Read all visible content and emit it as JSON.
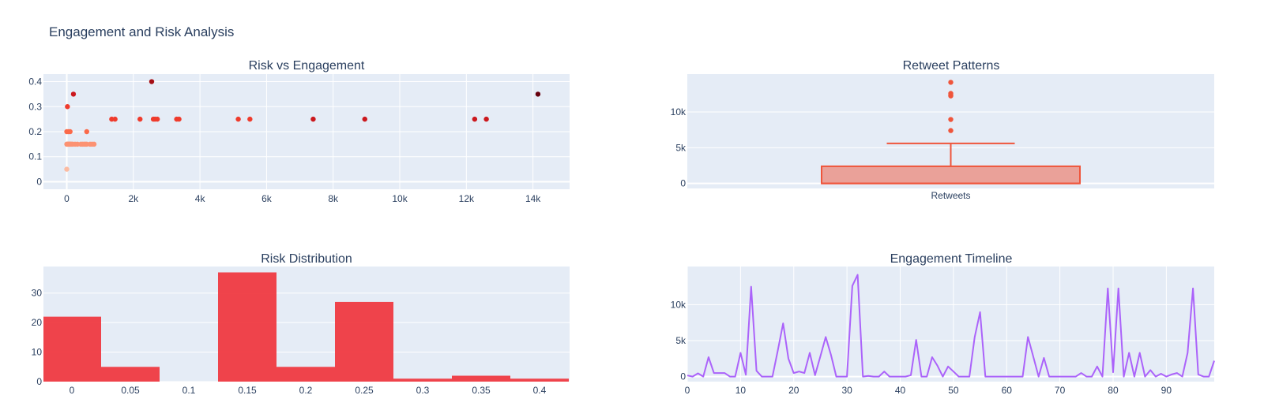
{
  "title": "Engagement and Risk Analysis",
  "chart_data": [
    {
      "type": "scatter",
      "title": "Risk vs Engagement",
      "xlabel": "",
      "ylabel": "",
      "xlim": [
        -700,
        15100
      ],
      "ylim": [
        -0.03,
        0.43
      ],
      "xticks": [
        0,
        2000,
        4000,
        6000,
        8000,
        10000,
        12000,
        14000
      ],
      "xtick_labels": [
        "0",
        "2k",
        "4k",
        "6k",
        "8k",
        "10k",
        "12k",
        "14k"
      ],
      "yticks": [
        0,
        0.1,
        0.2,
        0.3,
        0.4
      ],
      "ytick_labels": [
        "0",
        "0.1",
        "0.2",
        "0.3",
        "0.4"
      ],
      "grid": true,
      "colorscale": [
        "#fee0d2",
        "#fcbba1",
        "#fc9272",
        "#fb6a4a",
        "#ef3b2c",
        "#cb181d",
        "#a50f15",
        "#67000d"
      ],
      "points": [
        {
          "x": 0,
          "y": 0.05
        },
        {
          "x": 20,
          "y": 0.3
        },
        {
          "x": 200,
          "y": 0.35
        },
        {
          "x": 2550,
          "y": 0.4
        },
        {
          "x": 14150,
          "y": 0.35
        },
        {
          "x": 0,
          "y": 0.2
        },
        {
          "x": 50,
          "y": 0.2
        },
        {
          "x": 100,
          "y": 0.2
        },
        {
          "x": 600,
          "y": 0.2
        },
        {
          "x": 0,
          "y": 0.15
        },
        {
          "x": 20,
          "y": 0.15
        },
        {
          "x": 40,
          "y": 0.15
        },
        {
          "x": 60,
          "y": 0.15
        },
        {
          "x": 80,
          "y": 0.15
        },
        {
          "x": 100,
          "y": 0.15
        },
        {
          "x": 120,
          "y": 0.15
        },
        {
          "x": 150,
          "y": 0.15
        },
        {
          "x": 180,
          "y": 0.15
        },
        {
          "x": 250,
          "y": 0.15
        },
        {
          "x": 320,
          "y": 0.15
        },
        {
          "x": 420,
          "y": 0.15
        },
        {
          "x": 470,
          "y": 0.15
        },
        {
          "x": 520,
          "y": 0.15
        },
        {
          "x": 560,
          "y": 0.15
        },
        {
          "x": 600,
          "y": 0.15
        },
        {
          "x": 700,
          "y": 0.15
        },
        {
          "x": 760,
          "y": 0.15
        },
        {
          "x": 820,
          "y": 0.15
        },
        {
          "x": 1350,
          "y": 0.25
        },
        {
          "x": 1450,
          "y": 0.25
        },
        {
          "x": 2200,
          "y": 0.25
        },
        {
          "x": 2600,
          "y": 0.25
        },
        {
          "x": 2650,
          "y": 0.25
        },
        {
          "x": 2720,
          "y": 0.25
        },
        {
          "x": 3300,
          "y": 0.25
        },
        {
          "x": 3370,
          "y": 0.25
        },
        {
          "x": 5150,
          "y": 0.25
        },
        {
          "x": 5500,
          "y": 0.25
        },
        {
          "x": 7400,
          "y": 0.25
        },
        {
          "x": 8950,
          "y": 0.25
        },
        {
          "x": 12250,
          "y": 0.25
        },
        {
          "x": 12600,
          "y": 0.25
        }
      ]
    },
    {
      "type": "box",
      "title": "Retweet Patterns",
      "categories": [
        "Retweets"
      ],
      "ylim": [
        -700,
        15300
      ],
      "yticks": [
        0,
        5000,
        10000
      ],
      "ytick_labels": [
        "0",
        "5k",
        "10k"
      ],
      "grid": true,
      "color": "#ef553b",
      "box": {
        "min": 0,
        "q1": 0,
        "median": 0,
        "q3": 2400,
        "upper_fence": 5600
      },
      "outliers": [
        7400,
        8950,
        12250,
        12400,
        12600,
        14150
      ]
    },
    {
      "type": "bar",
      "title": "Risk Distribution",
      "categories": [
        "0",
        "0.05",
        "0.1",
        "0.15",
        "0.2",
        "0.25",
        "0.3",
        "0.35",
        "0.4"
      ],
      "values": [
        22,
        5,
        0,
        37,
        5,
        27,
        1,
        2,
        1
      ],
      "ylim": [
        0,
        39
      ],
      "yticks": [
        0,
        10,
        20,
        30
      ],
      "ytick_labels": [
        "0",
        "10",
        "20",
        "30"
      ],
      "grid": true,
      "color": "#f0343c"
    },
    {
      "type": "line",
      "title": "Engagement Timeline",
      "xlim": [
        0,
        99
      ],
      "ylim": [
        -700,
        15300
      ],
      "xticks": [
        0,
        10,
        20,
        30,
        40,
        50,
        60,
        70,
        80,
        90
      ],
      "xtick_labels": [
        "0",
        "10",
        "20",
        "30",
        "40",
        "50",
        "60",
        "70",
        "80",
        "90"
      ],
      "yticks": [
        0,
        5000,
        10000
      ],
      "ytick_labels": [
        "0",
        "5k",
        "10k"
      ],
      "grid": true,
      "color": "#ab63fa",
      "y": [
        150,
        0,
        450,
        0,
        2700,
        500,
        500,
        500,
        0,
        0,
        3300,
        250,
        12500,
        800,
        0,
        0,
        0,
        3600,
        7400,
        2500,
        500,
        700,
        500,
        3300,
        200,
        2800,
        5500,
        3000,
        0,
        0,
        0,
        12600,
        14150,
        0,
        100,
        0,
        0,
        700,
        0,
        0,
        0,
        0,
        200,
        5100,
        0,
        0,
        2700,
        1500,
        0,
        1400,
        700,
        0,
        0,
        0,
        5500,
        8950,
        0,
        0,
        0,
        0,
        0,
        0,
        0,
        0,
        5500,
        2800,
        0,
        2600,
        0,
        0,
        0,
        0,
        0,
        0,
        500,
        0,
        0,
        1400,
        0,
        12250,
        600,
        12250,
        0,
        3300,
        0,
        3300,
        0,
        900,
        0,
        400,
        0,
        300,
        500,
        0,
        3300,
        12250,
        300,
        0,
        0,
        2200
      ]
    }
  ]
}
